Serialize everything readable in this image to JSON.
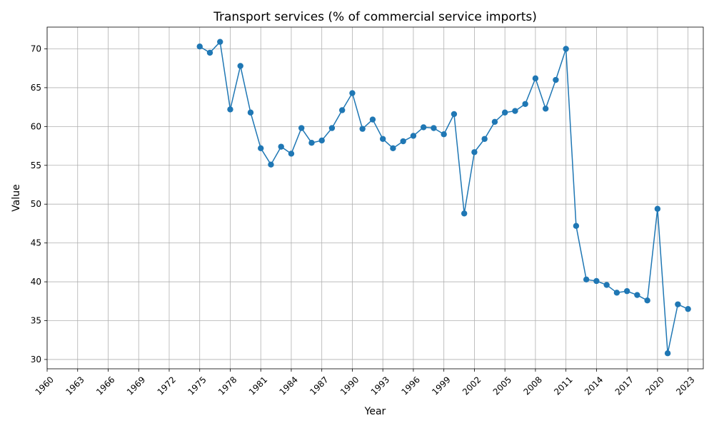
{
  "chart_data": {
    "type": "line",
    "title": "Transport services (% of commercial service imports)",
    "xlabel": "Year",
    "ylabel": "Value",
    "xlim": [
      1960,
      2024.5
    ],
    "ylim": [
      28.8,
      72.8
    ],
    "xticks": [
      1960,
      1963,
      1966,
      1969,
      1972,
      1975,
      1978,
      1981,
      1984,
      1987,
      1990,
      1993,
      1996,
      1999,
      2002,
      2005,
      2008,
      2011,
      2014,
      2017,
      2020,
      2023
    ],
    "yticks": [
      30,
      35,
      40,
      45,
      50,
      55,
      60,
      65,
      70
    ],
    "grid": true,
    "line_color": "#1f77b4",
    "marker": "circle",
    "series": [
      {
        "x": [
          1975,
          1976,
          1977,
          1978,
          1979,
          1980,
          1981,
          1982,
          1983,
          1984,
          1985,
          1986,
          1987,
          1988,
          1989,
          1990,
          1991,
          1992,
          1993,
          1994,
          1995,
          1996,
          1997,
          1998,
          1999,
          2000,
          2001,
          2002,
          2003,
          2004,
          2005,
          2006,
          2007,
          2008,
          2009,
          2010,
          2011,
          2012,
          2013,
          2014,
          2015,
          2016,
          2017,
          2018,
          2019,
          2020,
          2021,
          2022,
          2023
        ],
        "y": [
          70.3,
          69.5,
          70.9,
          62.2,
          67.8,
          61.8,
          57.2,
          55.1,
          57.4,
          56.5,
          59.8,
          57.9,
          58.2,
          59.8,
          62.1,
          64.3,
          59.7,
          60.9,
          58.4,
          57.2,
          58.1,
          58.8,
          59.9,
          59.8,
          59.0,
          61.6,
          48.8,
          56.7,
          58.4,
          60.6,
          61.8,
          62.0,
          62.9,
          66.2,
          62.3,
          66.0,
          70.0,
          47.2,
          40.3,
          40.1,
          39.6,
          38.6,
          38.8,
          38.3,
          37.6,
          49.4,
          30.8,
          37.1,
          36.5
        ]
      }
    ]
  }
}
